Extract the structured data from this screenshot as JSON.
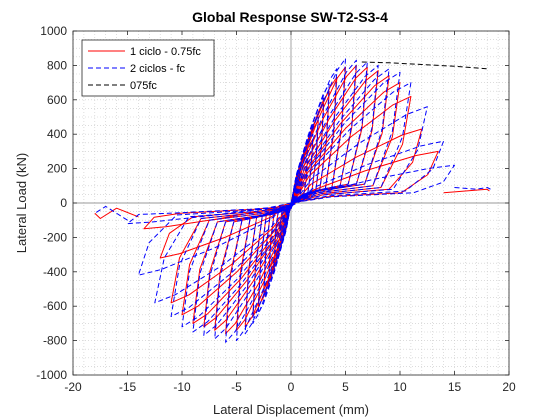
{
  "chart_data": {
    "type": "line",
    "title": "Global Response SW-T2-S3-4",
    "xlabel": "Lateral Displacement (mm)",
    "ylabel": "Lateral Load (kN)",
    "xlim": [
      -20,
      20
    ],
    "ylim": [
      -1000,
      1000
    ],
    "xticks": [
      -20,
      -15,
      -10,
      -5,
      0,
      5,
      10,
      15,
      20
    ],
    "yticks": [
      -1000,
      -800,
      -600,
      -400,
      -200,
      0,
      200,
      400,
      600,
      800,
      1000
    ],
    "grid": "minor-dotted",
    "legend_position": "top-left",
    "series": [
      {
        "name": "1 ciclo - 0.75fc",
        "color": "#ff0000",
        "style": "solid",
        "cycles": [
          {
            "amp": 1,
            "peak_pos": 150,
            "peak_neg": -160,
            "res_pos": 20,
            "res_neg": -20
          },
          {
            "amp": 1.5,
            "peak_pos": 250,
            "peak_neg": -260,
            "res_pos": 30,
            "res_neg": -30
          },
          {
            "amp": 2,
            "peak_pos": 370,
            "peak_neg": -380,
            "res_pos": 40,
            "res_neg": -40
          },
          {
            "amp": 2.5,
            "peak_pos": 480,
            "peak_neg": -500,
            "res_pos": 50,
            "res_neg": -50
          },
          {
            "amp": 3,
            "peak_pos": 580,
            "peak_neg": -600,
            "res_pos": 60,
            "res_neg": -60
          },
          {
            "amp": 3.5,
            "peak_pos": 650,
            "peak_neg": -660,
            "res_pos": 70,
            "res_neg": -70
          },
          {
            "amp": 4.2,
            "peak_pos": 730,
            "peak_neg": -720,
            "res_pos": 80,
            "res_neg": -80
          },
          {
            "amp": 5,
            "peak_pos": 790,
            "peak_neg": -740,
            "res_pos": 90,
            "res_neg": -90
          },
          {
            "amp": 6,
            "peak_pos": 800,
            "peak_neg": -760,
            "res_pos": 100,
            "res_neg": -100
          },
          {
            "amp": 7,
            "peak_pos": 790,
            "peak_neg": -740,
            "res_pos": 110,
            "res_neg": -110
          },
          {
            "amp": 8,
            "peak_pos": 770,
            "peak_neg": -720,
            "res_pos": 110,
            "res_neg": -110
          },
          {
            "amp": 9,
            "peak_pos": 740,
            "peak_neg": -700,
            "res_pos": 110,
            "res_neg": -110
          },
          {
            "amp": 10,
            "peak_pos": 700,
            "peak_neg": -650,
            "res_pos": 100,
            "res_neg": -100
          },
          {
            "amp": 11,
            "peak_pos": 620,
            "peak_neg": -580,
            "res_pos": 90,
            "res_neg": -90
          },
          {
            "amp": 12,
            "peak_pos": 430,
            "peak_neg": -320,
            "res_pos": 80,
            "res_neg": -80
          },
          {
            "amp": 13.5,
            "peak_pos": 300,
            "peak_neg": -150,
            "res_pos": 60,
            "res_neg": -60
          }
        ],
        "tail_pos": [
          [
            14,
            60
          ],
          [
            16,
            70
          ],
          [
            18,
            80
          ],
          [
            18.2,
            70
          ]
        ],
        "tail_neg": [
          [
            -14,
            -80
          ],
          [
            -16,
            -30
          ],
          [
            -17.5,
            -90
          ],
          [
            -18,
            -60
          ]
        ]
      },
      {
        "name": "2 ciclos - fc",
        "color": "#0000ff",
        "style": "dashed",
        "cycles": [
          {
            "amp": 1,
            "peak_pos": 170,
            "peak_neg": -180,
            "res_pos": 20,
            "res_neg": -20
          },
          {
            "amp": 1.5,
            "peak_pos": 280,
            "peak_neg": -290,
            "res_pos": 30,
            "res_neg": -30
          },
          {
            "amp": 2,
            "peak_pos": 400,
            "peak_neg": -420,
            "res_pos": 40,
            "res_neg": -40
          },
          {
            "amp": 2.5,
            "peak_pos": 510,
            "peak_neg": -540,
            "res_pos": 50,
            "res_neg": -50
          },
          {
            "amp": 3,
            "peak_pos": 610,
            "peak_neg": -640,
            "res_pos": 60,
            "res_neg": -60
          },
          {
            "amp": 3.5,
            "peak_pos": 690,
            "peak_neg": -700,
            "res_pos": 70,
            "res_neg": -70
          },
          {
            "amp": 4.2,
            "peak_pos": 780,
            "peak_neg": -760,
            "res_pos": 80,
            "res_neg": -80
          },
          {
            "amp": 5,
            "peak_pos": 840,
            "peak_neg": -800,
            "res_pos": 90,
            "res_neg": -90
          },
          {
            "amp": 6,
            "peak_pos": 830,
            "peak_neg": -810,
            "res_pos": 100,
            "res_neg": -100
          },
          {
            "amp": 7,
            "peak_pos": 820,
            "peak_neg": -790,
            "res_pos": 110,
            "res_neg": -110
          },
          {
            "amp": 8,
            "peak_pos": 800,
            "peak_neg": -770,
            "res_pos": 110,
            "res_neg": -110
          },
          {
            "amp": 9,
            "peak_pos": 780,
            "peak_neg": -750,
            "res_pos": 110,
            "res_neg": -110
          },
          {
            "amp": 10,
            "peak_pos": 760,
            "peak_neg": -720,
            "res_pos": 100,
            "res_neg": -100
          },
          {
            "amp": 11,
            "peak_pos": 700,
            "peak_neg": -660,
            "res_pos": 90,
            "res_neg": -90
          },
          {
            "amp": 12.5,
            "peak_pos": 560,
            "peak_neg": -580,
            "res_pos": 80,
            "res_neg": -80
          },
          {
            "amp": 14,
            "peak_pos": 360,
            "peak_neg": -420,
            "res_pos": 70,
            "res_neg": -70
          },
          {
            "amp": 15,
            "peak_pos": 220,
            "peak_neg": -120,
            "res_pos": 60,
            "res_neg": -60
          }
        ],
        "tail_pos": [
          [
            15,
            90
          ],
          [
            17,
            80
          ],
          [
            18,
            90
          ],
          [
            18.3,
            80
          ]
        ],
        "tail_neg": [
          [
            -15,
            -100
          ],
          [
            -17,
            -20
          ],
          [
            -18,
            -60
          ]
        ]
      },
      {
        "name": "075fc",
        "color": "#000000",
        "style": "dashed",
        "points": [
          [
            6.5,
            820
          ],
          [
            9,
            815
          ],
          [
            12,
            805
          ],
          [
            15,
            795
          ],
          [
            18,
            780
          ]
        ]
      }
    ]
  }
}
